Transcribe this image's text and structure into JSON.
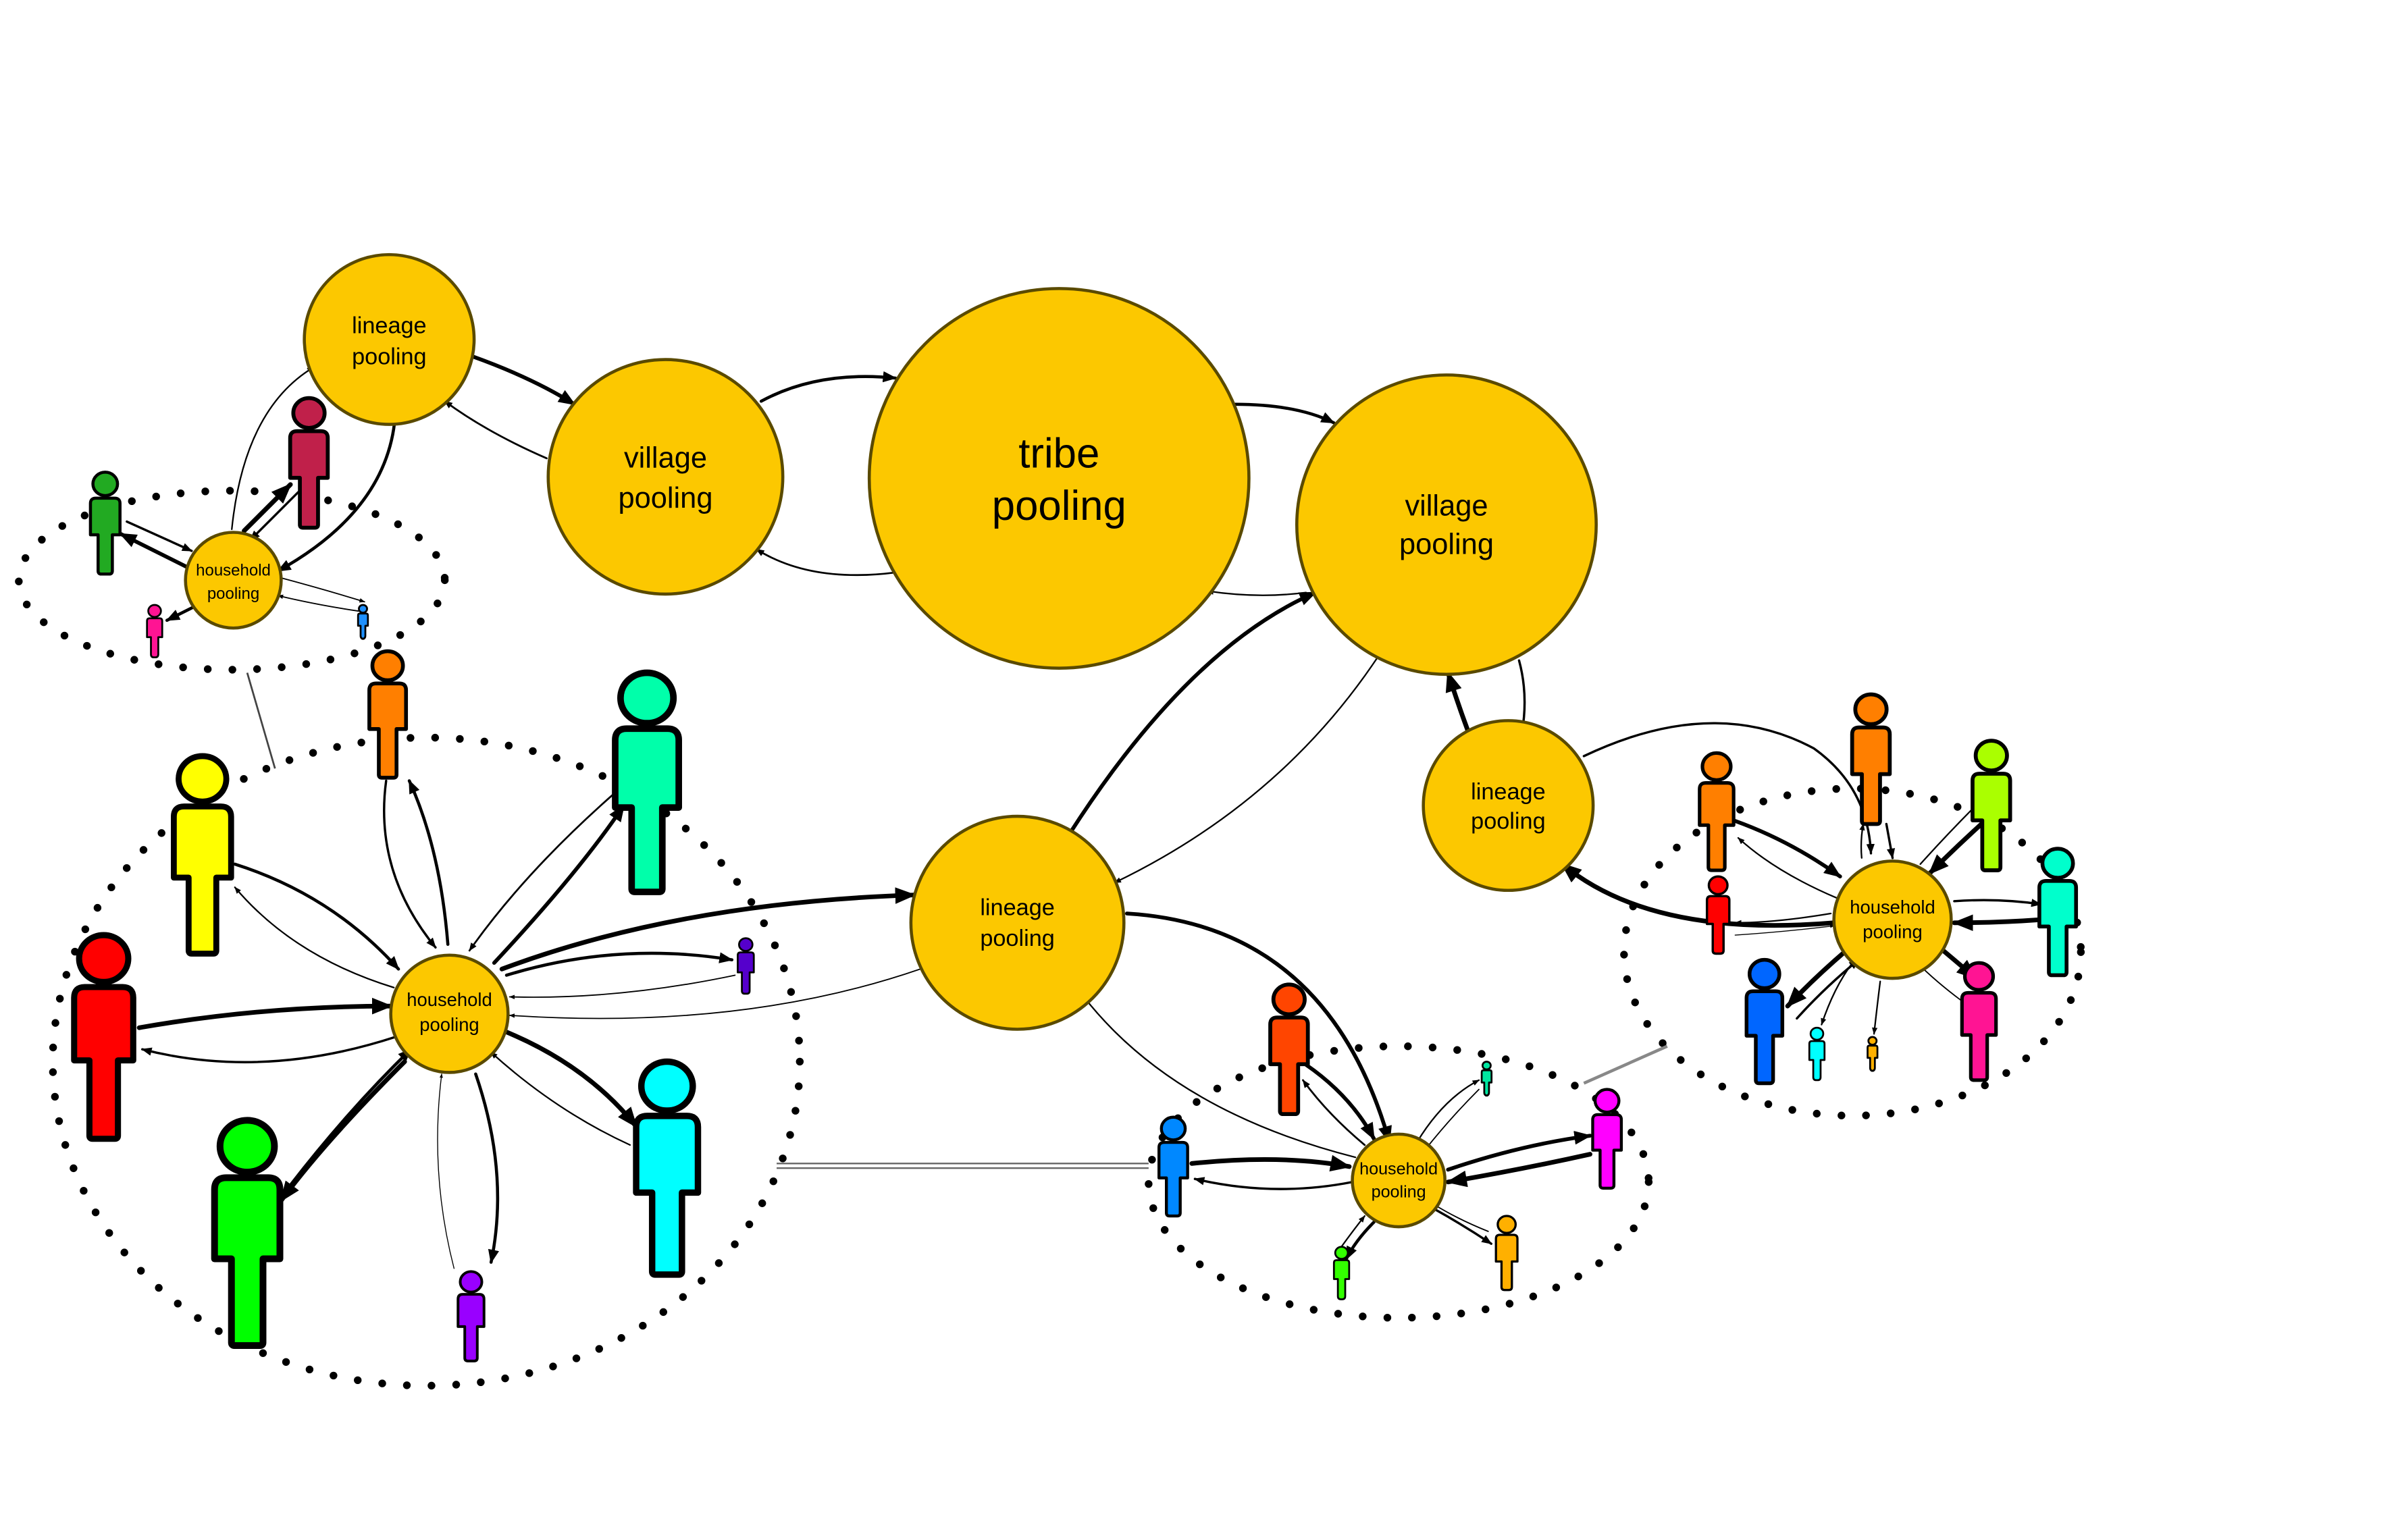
{
  "nodes": {
    "tribe": {
      "line1": "tribe",
      "line2": "pooling"
    },
    "village_left": {
      "line1": "village",
      "line2": "pooling"
    },
    "village_right": {
      "line1": "village",
      "line2": "pooling"
    },
    "lineage_topleft": {
      "line1": "lineage",
      "line2": "pooling"
    },
    "lineage_center": {
      "line1": "lineage",
      "line2": "pooling"
    },
    "lineage_right": {
      "line1": "lineage",
      "line2": "pooling"
    },
    "household_topleft": {
      "line1": "household",
      "line2": "pooling"
    },
    "household_big": {
      "line1": "household",
      "line2": "pooling"
    },
    "household_bottom": {
      "line1": "household",
      "line2": "pooling"
    },
    "household_right": {
      "line1": "household",
      "line2": "pooling"
    }
  },
  "colors": {
    "pool_fill": "#FCC800",
    "people": [
      "#FF0000",
      "#FFFF00",
      "#00FF00",
      "#FF7F00",
      "#00FFAA",
      "#00FFFF",
      "#9900FF",
      "#5500CC",
      "#C0204A",
      "#22AA22",
      "#FF1493",
      "#1E90FF",
      "#FF4500",
      "#0088FF",
      "#33FF00",
      "#FF00FF",
      "#FFB000",
      "#00E6A0",
      "#0066FF",
      "#AAFF00",
      "#00FFCC"
    ]
  }
}
